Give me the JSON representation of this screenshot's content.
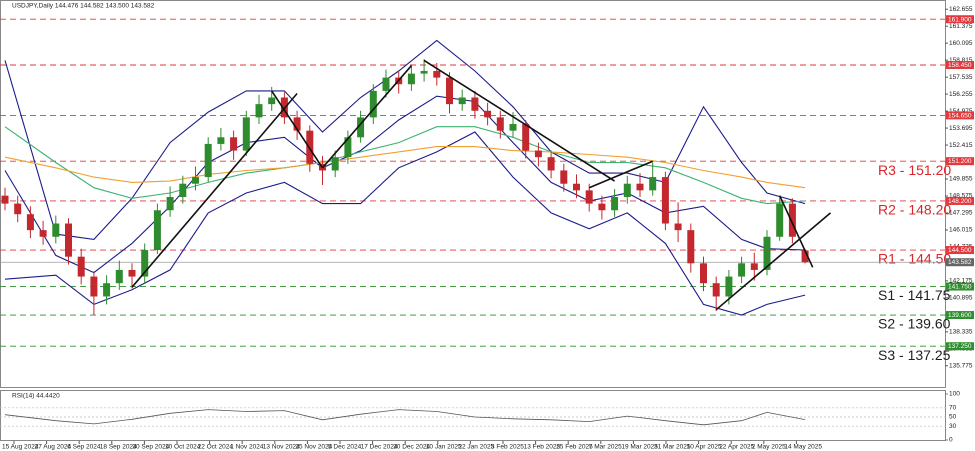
{
  "chart_data": {
    "type": "candlestick",
    "title": "USDJPY,Daily  144.476 144.582 143.500 143.582",
    "categories": [
      "15 Aug 2024",
      "27 Aug 2024",
      "6 Sep 2024",
      "18 Sep 2024",
      "30 Sep 2024",
      "10 Oct 2024",
      "22 Oct 2024",
      "1 Nov 2024",
      "13 Nov 2024",
      "25 Nov 2024",
      "5 Dec 2024",
      "17 Dec 2024",
      "30 Dec 2024",
      "10 Jan 2025",
      "22 Jan 2025",
      "3 Feb 2025",
      "13 Feb 2025",
      "25 Feb 2025",
      "7 Mar 2025",
      "19 Mar 2025",
      "31 Mar 2025",
      "10 Apr 2025",
      "22 Apr 2025",
      "2 May 2025",
      "14 May 2025"
    ],
    "candles": {
      "open": [
        148.6,
        148.0,
        147.2,
        146.0,
        145.5,
        146.5,
        144.0,
        142.5,
        141.0,
        142.0,
        143.0,
        142.5,
        144.5,
        147.5,
        148.5,
        149.5,
        150.0,
        152.5,
        153.0,
        152.0,
        154.5,
        155.5,
        156.0,
        154.5,
        153.5,
        151.0,
        150.5,
        151.5,
        153.0,
        154.5,
        156.5,
        157.5,
        157.0,
        157.8,
        158.0,
        157.5,
        155.5,
        156.0,
        155.0,
        154.5,
        153.5,
        154.0,
        152.0,
        151.5,
        150.5,
        149.5,
        149.0,
        148.0,
        147.5,
        148.5,
        149.5,
        149.0,
        150.0,
        146.5,
        146.0,
        143.5,
        142.0,
        141.0,
        142.5,
        143.5,
        143.0,
        145.5,
        148.0,
        144.476
      ],
      "high": [
        149.2,
        148.6,
        147.8,
        146.7,
        147.1,
        146.9,
        144.6,
        142.9,
        142.6,
        143.7,
        143.5,
        145.0,
        148.0,
        149.3,
        150.1,
        150.8,
        153.0,
        153.7,
        153.5,
        155.0,
        156.2,
        156.8,
        156.4,
        155.0,
        153.9,
        151.6,
        152.0,
        153.5,
        155.0,
        157.0,
        158.1,
        158.0,
        158.5,
        158.9,
        158.6,
        157.9,
        156.6,
        156.5,
        155.6,
        155.0,
        154.9,
        154.3,
        152.6,
        152.0,
        151.0,
        150.2,
        149.5,
        148.6,
        149.1,
        150.1,
        150.3,
        151.1,
        150.4,
        148.1,
        146.5,
        144.0,
        142.5,
        143.0,
        144.0,
        144.3,
        146.0,
        148.6,
        148.4,
        144.582
      ],
      "low": [
        147.5,
        146.6,
        145.4,
        144.9,
        145.0,
        143.4,
        141.9,
        139.6,
        140.4,
        141.5,
        141.6,
        142.0,
        144.2,
        147.0,
        148.0,
        149.0,
        149.6,
        152.0,
        151.3,
        151.6,
        154.0,
        155.0,
        154.0,
        152.8,
        150.4,
        149.4,
        150.0,
        151.0,
        152.6,
        154.0,
        156.0,
        156.3,
        156.5,
        157.2,
        156.9,
        154.8,
        155.0,
        154.4,
        153.9,
        152.9,
        153.0,
        151.4,
        150.8,
        149.9,
        148.9,
        148.4,
        147.4,
        146.8,
        147.0,
        148.0,
        148.5,
        148.6,
        146.0,
        145.1,
        142.8,
        141.4,
        139.9,
        140.4,
        142.0,
        142.2,
        142.6,
        145.2,
        145.0,
        143.5
      ],
      "close": [
        148.0,
        147.2,
        146.0,
        145.5,
        146.5,
        144.0,
        142.5,
        141.0,
        142.0,
        143.0,
        142.5,
        144.5,
        147.5,
        148.5,
        149.5,
        150.0,
        152.5,
        153.0,
        152.0,
        154.5,
        155.5,
        156.0,
        154.5,
        153.5,
        151.0,
        150.5,
        151.5,
        153.0,
        154.5,
        156.5,
        157.5,
        157.0,
        157.8,
        158.0,
        157.5,
        155.5,
        156.0,
        155.0,
        154.5,
        153.5,
        154.0,
        152.0,
        151.5,
        150.5,
        149.5,
        149.0,
        148.0,
        147.5,
        148.5,
        149.5,
        149.0,
        150.0,
        146.5,
        146.0,
        143.5,
        142.0,
        141.0,
        142.5,
        143.5,
        143.0,
        145.5,
        148.0,
        145.5,
        143.582
      ],
      "up_color": "#2e8b2e",
      "down_color": "#c3282e"
    },
    "ylim": [
      134.1,
      163.35
    ],
    "yticks": [
      162.655,
      161.375,
      160.095,
      158.815,
      157.535,
      156.255,
      154.975,
      153.695,
      152.415,
      151.135,
      149.855,
      148.575,
      147.295,
      146.015,
      144.735,
      143.455,
      142.175,
      140.895,
      139.615,
      138.335,
      137.055,
      135.775
    ],
    "indicators": [
      {
        "color": "#1c1c8a",
        "x": [
          0,
          4,
          7,
          10,
          13,
          16,
          19,
          22,
          25,
          28,
          31,
          34,
          37,
          40,
          43,
          46,
          49,
          52,
          55,
          58,
          60,
          63
        ],
        "values": [
          158.8,
          145.7,
          145.3,
          148.4,
          152.6,
          154.9,
          156.5,
          156.5,
          153.4,
          156.0,
          158.0,
          160.3,
          158.0,
          155.3,
          151.9,
          150.3,
          150.3,
          149.6,
          155.3,
          151.1,
          148.8,
          148.0
        ]
      },
      {
        "color": "#1c1c8a",
        "x": [
          0,
          4,
          7,
          10,
          13,
          16,
          19,
          22,
          25,
          28,
          31,
          34,
          37,
          40,
          43,
          46,
          49,
          52,
          55,
          58,
          60,
          63
        ],
        "values": [
          150.5,
          144.1,
          142.8,
          145.0,
          147.8,
          151.1,
          152.6,
          153.0,
          150.7,
          152.0,
          154.3,
          156.1,
          155.7,
          152.6,
          149.6,
          148.2,
          148.8,
          147.3,
          147.8,
          145.3,
          144.6,
          144.5
        ]
      },
      {
        "color": "#1c1c8a",
        "x": [
          0,
          4,
          7,
          10,
          13,
          16,
          19,
          22,
          25,
          28,
          31,
          34,
          37,
          40,
          43,
          46,
          49,
          52,
          55,
          58,
          60,
          63
        ],
        "values": [
          142.3,
          142.6,
          140.4,
          141.5,
          143.0,
          147.3,
          148.8,
          149.6,
          148.0,
          148.0,
          150.7,
          151.9,
          153.4,
          150.0,
          147.3,
          146.1,
          147.3,
          145.0,
          140.4,
          139.6,
          140.4,
          141.1
        ]
      },
      {
        "color": "#3cb371",
        "x": [
          0,
          4,
          7,
          10,
          13,
          16,
          19,
          22,
          25,
          28,
          31,
          34,
          37,
          40,
          43,
          46,
          49,
          52,
          55,
          58,
          60,
          63
        ],
        "values": [
          153.8,
          151.1,
          149.2,
          148.4,
          148.8,
          149.6,
          150.3,
          150.7,
          151.1,
          151.9,
          152.6,
          153.8,
          153.8,
          153.0,
          151.9,
          151.1,
          151.1,
          150.7,
          149.6,
          148.4,
          148.0,
          148.2
        ]
      },
      {
        "color": "#f0a030",
        "x": [
          0,
          4,
          7,
          10,
          13,
          16,
          19,
          22,
          25,
          28,
          31,
          34,
          37,
          40,
          43,
          46,
          49,
          52,
          55,
          58,
          60,
          63
        ],
        "values": [
          151.5,
          150.7,
          150.0,
          149.6,
          149.7,
          150.2,
          150.5,
          150.7,
          151.1,
          151.5,
          151.9,
          152.3,
          152.3,
          152.0,
          151.9,
          151.7,
          151.5,
          151.1,
          150.5,
          150.0,
          149.6,
          149.2
        ]
      }
    ],
    "trendlines": [
      {
        "x": [
          10,
          23
        ],
        "values": [
          141.7,
          156.3
        ]
      },
      {
        "x": [
          21,
          25
        ],
        "values": [
          156.5,
          150.7
        ]
      },
      {
        "x": [
          25,
          32
        ],
        "values": [
          150.7,
          158.4
        ]
      },
      {
        "x": [
          33,
          48
        ],
        "values": [
          158.8,
          149.7
        ]
      },
      {
        "x": [
          46,
          51
        ],
        "values": [
          149.2,
          151.2
        ]
      },
      {
        "x": [
          56,
          65
        ],
        "values": [
          140.0,
          147.3
        ]
      },
      {
        "x": [
          61,
          63.6
        ],
        "values": [
          148.6,
          143.2
        ]
      }
    ],
    "levels": [
      {
        "price": {
          "value": 161.9,
          "label": "161.900"
        },
        "color": "#e0393e"
      },
      {
        "price": {
          "value": 158.45,
          "label": "158.450"
        },
        "color": "#e0393e"
      },
      {
        "price": {
          "value": 154.65,
          "label": "154.650"
        },
        "color": "#e0393e"
      },
      {
        "price": {
          "value": 151.2,
          "label": "151.200"
        },
        "color": "#e0393e",
        "name": "R3 - 151.20"
      },
      {
        "price": {
          "value": 148.2,
          "label": "148.200"
        },
        "color": "#e0393e",
        "name": "R2 - 148.20"
      },
      {
        "price": {
          "value": 144.5,
          "label": "144.500"
        },
        "color": "#e0393e",
        "name": "R1 - 144.50"
      },
      {
        "price": {
          "value": 141.75,
          "label": "141.750"
        },
        "color": "#2f8f2f",
        "name": "S1 - 141.75"
      },
      {
        "price": {
          "value": 139.6,
          "label": "139.600"
        },
        "color": "#2f8f2f",
        "name": "S2 - 139.60"
      },
      {
        "price": {
          "value": 137.25,
          "label": "137.250"
        },
        "color": "#2f8f2f",
        "name": "S3 - 137.25"
      }
    ],
    "last": {
      "value": 143.582,
      "label": "143.582"
    },
    "rsi": {
      "title": "RSI(14) 44.4420",
      "ylim": [
        0,
        100
      ],
      "yticks": [
        100,
        70,
        50,
        30,
        0
      ],
      "color": "#555555",
      "x": [
        0,
        4,
        7,
        10,
        13,
        16,
        19,
        22,
        25,
        28,
        31,
        34,
        37,
        40,
        43,
        46,
        49,
        52,
        55,
        58,
        60,
        63
      ],
      "values": [
        55,
        42,
        35,
        45,
        58,
        66,
        62,
        64,
        44,
        56,
        66,
        62,
        50,
        46,
        44,
        40,
        52,
        42,
        33,
        42,
        60,
        44.442
      ]
    }
  }
}
